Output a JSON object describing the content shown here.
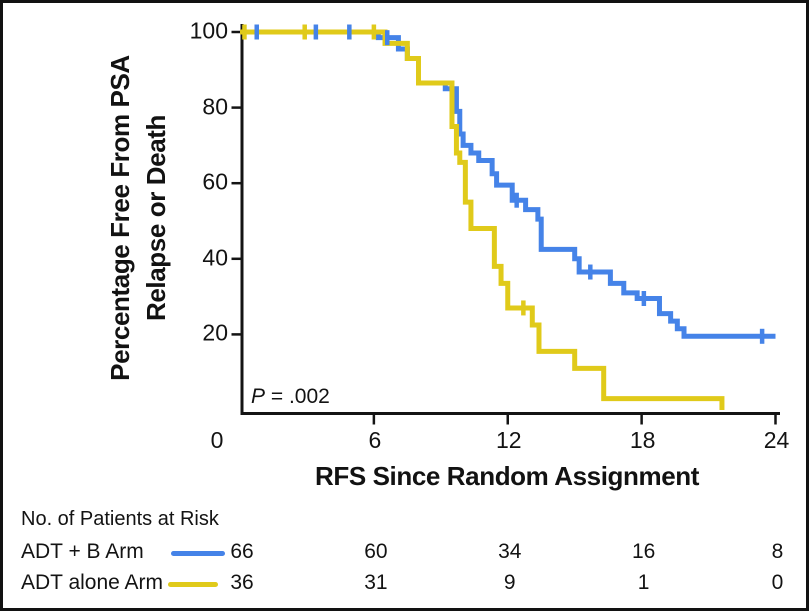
{
  "chart_data": {
    "type": "line",
    "variant": "kaplan-meier-step",
    "title": "",
    "xlabel": "RFS Since Random Assignment",
    "ylabel_line1": "Percentage Free From PSA",
    "ylabel_line2": "Relapse or Death",
    "xlim": [
      0,
      24
    ],
    "ylim": [
      0,
      100
    ],
    "xticks": [
      0,
      6,
      12,
      18,
      24
    ],
    "yticks": [
      20,
      40,
      60,
      80,
      100
    ],
    "grid": false,
    "legend_position": "below-left-risk-table",
    "annotation": {
      "p_symbol": "P",
      "p_rest": " = .002"
    },
    "series": [
      {
        "name": "ADT + B Arm",
        "color": "#4583e8",
        "n": 66,
        "steps": [
          [
            0,
            100
          ],
          [
            6.2,
            98.5
          ],
          [
            7.1,
            95.5
          ],
          [
            7.5,
            93
          ],
          [
            8.0,
            86.5
          ],
          [
            9.2,
            85
          ],
          [
            9.7,
            79
          ],
          [
            9.85,
            73
          ],
          [
            10.0,
            70
          ],
          [
            10.35,
            68
          ],
          [
            10.7,
            66
          ],
          [
            11.3,
            62.5
          ],
          [
            11.5,
            59.5
          ],
          [
            12.2,
            55.5
          ],
          [
            12.8,
            53
          ],
          [
            13.35,
            50.5
          ],
          [
            13.5,
            42.5
          ],
          [
            15.0,
            40
          ],
          [
            15.2,
            36.5
          ],
          [
            16.6,
            33.5
          ],
          [
            17.2,
            31
          ],
          [
            17.8,
            29.5
          ],
          [
            18.8,
            25.5
          ],
          [
            19.3,
            23.5
          ],
          [
            19.6,
            21.5
          ],
          [
            19.9,
            19.5
          ]
        ],
        "end_x": 24,
        "censors": [
          [
            0.75,
            100
          ],
          [
            3.4,
            100
          ],
          [
            4.9,
            100
          ],
          [
            6.6,
            98.5
          ],
          [
            12.4,
            55.5
          ],
          [
            15.7,
            36.5
          ],
          [
            18.1,
            29.5
          ],
          [
            23.4,
            19.5
          ]
        ]
      },
      {
        "name": "ADT alone Arm",
        "color": "#e0ca1a",
        "n": 36,
        "steps": [
          [
            0,
            100
          ],
          [
            6.5,
            97
          ],
          [
            7.5,
            93
          ],
          [
            8.0,
            86.5
          ],
          [
            9.5,
            75
          ],
          [
            9.7,
            68
          ],
          [
            9.85,
            65.5
          ],
          [
            10.1,
            55
          ],
          [
            10.35,
            48
          ],
          [
            11.4,
            38
          ],
          [
            11.7,
            33.5
          ],
          [
            12.0,
            27
          ],
          [
            13.1,
            22.5
          ],
          [
            13.4,
            15.5
          ],
          [
            15.0,
            11
          ],
          [
            16.3,
            3
          ],
          [
            21.6,
            0
          ]
        ],
        "end_x": 21.6,
        "censors": [
          [
            0.2,
            100
          ],
          [
            2.9,
            100
          ],
          [
            6.0,
            100
          ],
          [
            12.7,
            27
          ]
        ]
      }
    ]
  },
  "risk_table": {
    "title": "No. of Patients at Risk",
    "timepoints": [
      0,
      6,
      12,
      18,
      24
    ],
    "rows": [
      {
        "label": "ADT + B Arm",
        "color": "#4583e8",
        "counts": [
          "66",
          "60",
          "34",
          "16",
          "8"
        ]
      },
      {
        "label": "ADT alone Arm",
        "color": "#e0ca1a",
        "counts": [
          "36",
          "31",
          "9",
          "1",
          "0"
        ]
      }
    ]
  },
  "colors": {
    "axis": "#141414",
    "text": "#131313",
    "background": "#ffffff"
  }
}
